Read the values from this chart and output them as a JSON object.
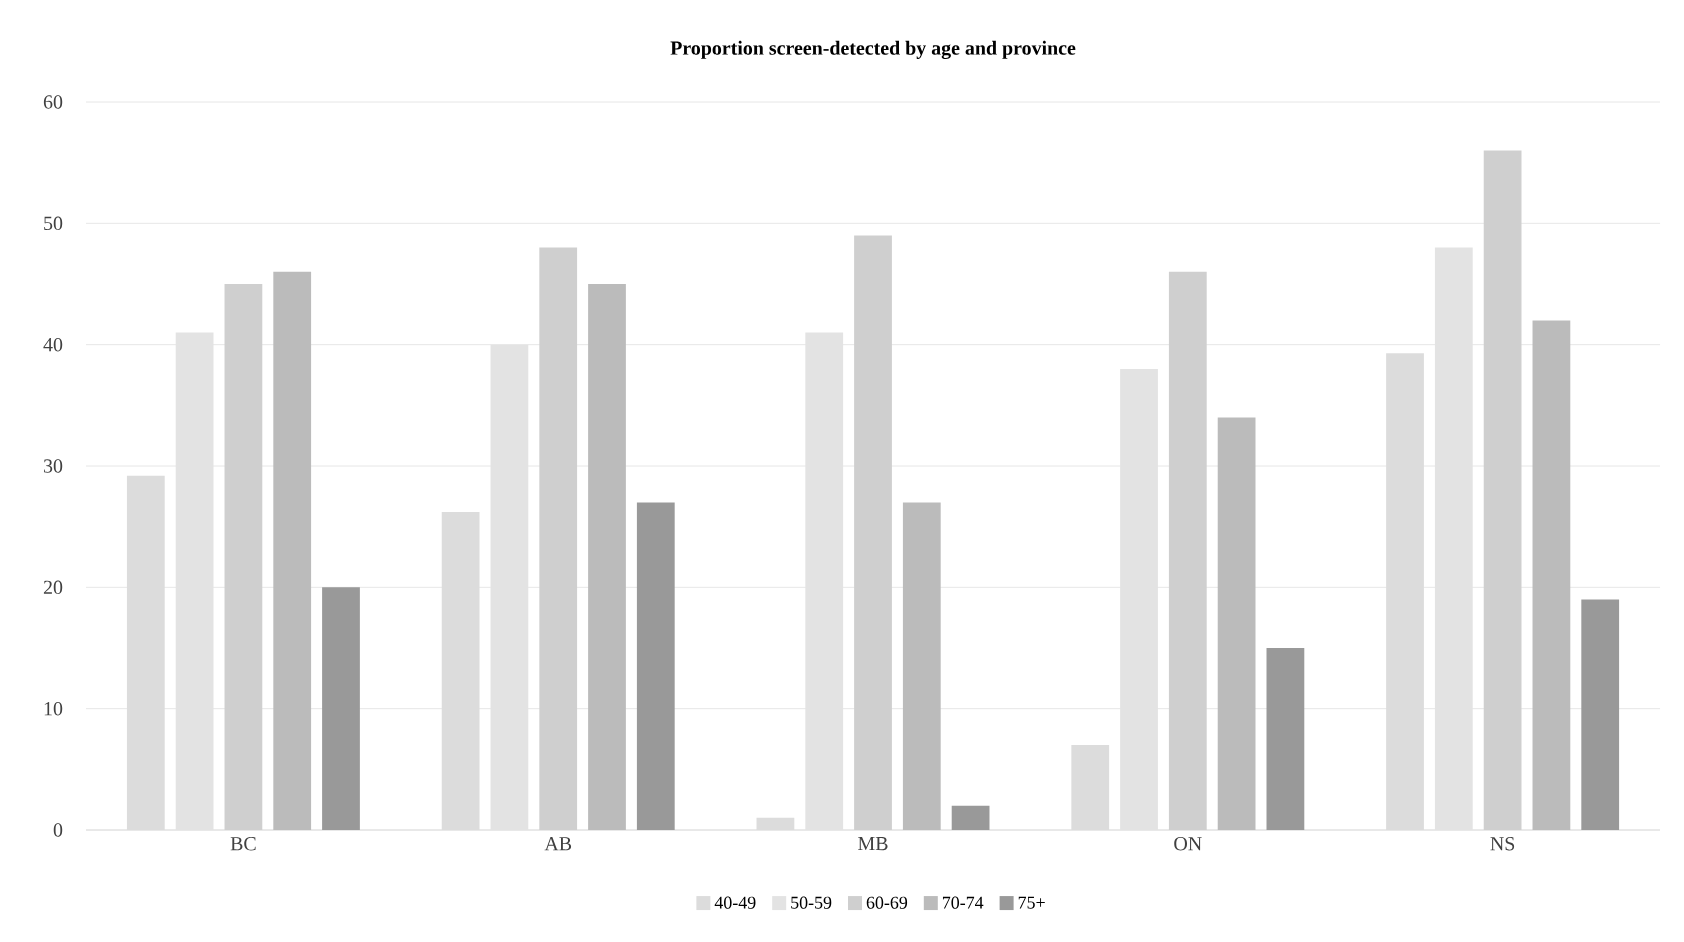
{
  "chart_data": {
    "type": "bar",
    "title": "Proportion screen-detected by age and province",
    "categories": [
      "BC",
      "AB",
      "MB",
      "ON",
      "NS"
    ],
    "series": [
      {
        "name": "40-49",
        "color": "#dcdcdc",
        "values": [
          29.2,
          26.2,
          1,
          7,
          39.3
        ]
      },
      {
        "name": "50-59",
        "color": "#e3e3e3",
        "values": [
          41,
          40,
          41,
          38,
          48
        ]
      },
      {
        "name": "60-69",
        "color": "#cfcfcf",
        "values": [
          45,
          48,
          49,
          46,
          56
        ]
      },
      {
        "name": "70-74",
        "color": "#bbbbbb",
        "values": [
          46,
          45,
          27,
          34,
          42
        ]
      },
      {
        "name": "75+",
        "color": "#999999",
        "values": [
          20,
          27,
          2,
          15,
          19
        ]
      }
    ],
    "ylim": [
      0,
      60
    ],
    "yticks": [
      0,
      10,
      20,
      30,
      40,
      50,
      60
    ],
    "grid": "y",
    "legend": "bottom"
  }
}
